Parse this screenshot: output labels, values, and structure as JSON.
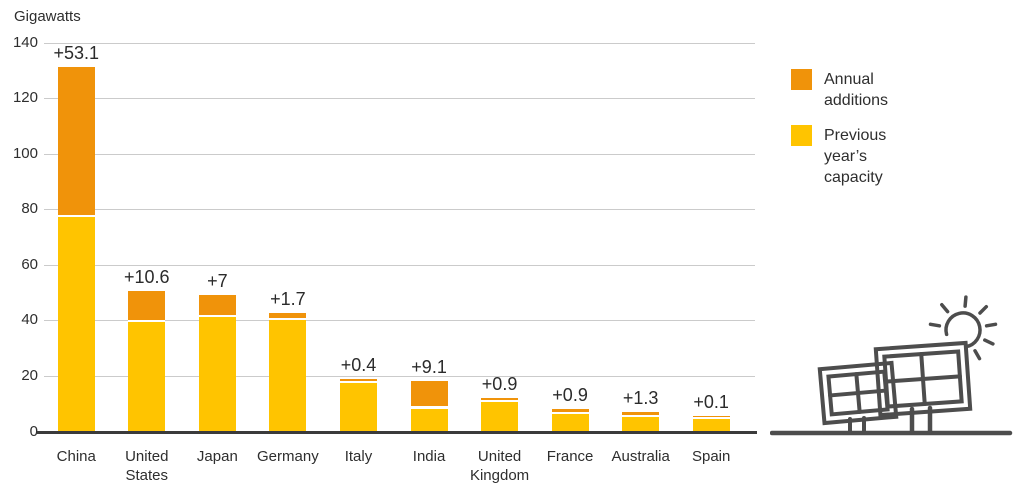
{
  "unit_label": "Gigawatts",
  "legend": {
    "annual": {
      "label": "Annual additions",
      "color": "#F0930A"
    },
    "previous": {
      "label": "Previous year’s capacity",
      "color": "#FFC400"
    }
  },
  "chart_data": {
    "type": "bar",
    "stacked": true,
    "title": "Gigawatts",
    "ylabel": "Gigawatts",
    "ylim": [
      0,
      140
    ],
    "yticks": [
      0,
      20,
      40,
      60,
      80,
      100,
      120,
      140
    ],
    "grid": true,
    "legend_position": "right",
    "categories": [
      "China",
      "United States",
      "Japan",
      "Germany",
      "Italy",
      "India",
      "United Kingdom",
      "France",
      "Australia",
      "Spain"
    ],
    "series": [
      {
        "name": "Previous year’s capacity",
        "color": "#FFC400",
        "values": [
          78.0,
          40.0,
          42.0,
          41.0,
          18.5,
          9.0,
          11.3,
          7.1,
          5.8,
          5.5
        ]
      },
      {
        "name": "Annual additions",
        "color": "#F0930A",
        "values": [
          53.1,
          10.6,
          7,
          1.7,
          0.4,
          9.1,
          0.9,
          0.9,
          1.3,
          0.1
        ]
      }
    ],
    "bar_labels": [
      "+53.1",
      "+10.6",
      "+7",
      "+1.7",
      "+0.4",
      "+9.1",
      "+0.9",
      "+0.9",
      "+1.3",
      "+0.1"
    ]
  },
  "illustration": {
    "name": "solar-panels-and-sun",
    "stroke_color": "#4d4d4d"
  }
}
